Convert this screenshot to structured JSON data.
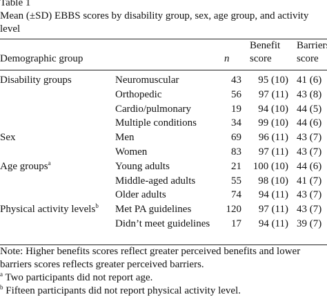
{
  "table_label": "Table 1",
  "title_line1": "Mean (±SD) EBBS scores by disability group, sex, age group, and activity",
  "title_line2": "level",
  "header": {
    "col_group": "Demographic group",
    "col_n": "n",
    "col_benefit_1": "Benefit",
    "col_benefit_2": "score",
    "col_barriers_1": "Barriers",
    "col_barriers_2": "score"
  },
  "rows": [
    {
      "group": "Disability groups",
      "sup": "",
      "sub": "Neuromuscular",
      "n": "43",
      "benefit": "95 (10)",
      "barriers": "41 (6)"
    },
    {
      "group": "",
      "sup": "",
      "sub": "Orthopedic",
      "n": "56",
      "benefit": "97 (11)",
      "barriers": "43 (8)"
    },
    {
      "group": "",
      "sup": "",
      "sub": "Cardio/pulmonary",
      "n": "19",
      "benefit": "94 (10)",
      "barriers": "44 (5)"
    },
    {
      "group": "",
      "sup": "",
      "sub": "Multiple conditions",
      "n": "34",
      "benefit": "99 (10)",
      "barriers": "44 (6)"
    },
    {
      "group": "Sex",
      "sup": "",
      "sub": "Men",
      "n": "69",
      "benefit": "96 (11)",
      "barriers": "43 (7)"
    },
    {
      "group": "",
      "sup": "",
      "sub": "Women",
      "n": "83",
      "benefit": "97 (11)",
      "barriers": "43 (7)"
    },
    {
      "group": "Age groups",
      "sup": "a",
      "sub": "Young adults",
      "n": "21",
      "benefit": "100 (10)",
      "barriers": "44 (6)"
    },
    {
      "group": "",
      "sup": "",
      "sub": "Middle-aged adults",
      "n": "55",
      "benefit": "98 (10)",
      "barriers": "41 (7)"
    },
    {
      "group": "",
      "sup": "",
      "sub": "Older adults",
      "n": "74",
      "benefit": "94 (11)",
      "barriers": "43 (7)"
    },
    {
      "group": "Physical activity levels",
      "sup": "b",
      "sub": "Met PA guidelines",
      "n": "120",
      "benefit": "97 (11)",
      "barriers": "43 (7)"
    },
    {
      "group": "",
      "sup": "",
      "sub": "Didn’t meet guidelines",
      "n": "17",
      "benefit": "94 (11)",
      "barriers": "39 (7)"
    }
  ],
  "note_line1": "Note: Higher benefits scores reflect greater perceived benefits and lower",
  "note_line2": "barriers scores reflects greater perceived barriers.",
  "footnote_a_mark": "a",
  "footnote_a": "Two participants did not report age.",
  "footnote_b_mark": "b",
  "footnote_b": "Fifteen participants did not report physical activity level."
}
